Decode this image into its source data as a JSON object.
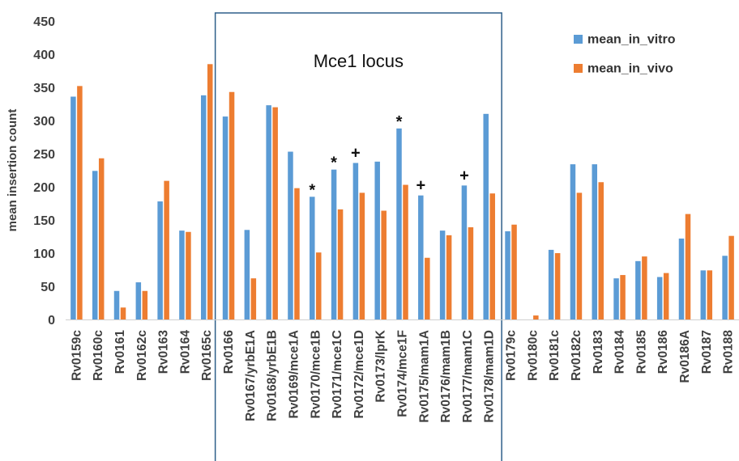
{
  "chart_data": {
    "type": "bar",
    "title": "",
    "xlabel": "",
    "ylabel": "mean insertion count",
    "ylim": [
      0,
      450
    ],
    "yticks": [
      0,
      50,
      100,
      150,
      200,
      250,
      300,
      350,
      400,
      450
    ],
    "grid": false,
    "legend_position": "top-right",
    "categories": [
      "Rv0159c",
      "Rv0160c",
      "Rv0161",
      "Rv0162c",
      "Rv0163",
      "Rv0164",
      "Rv0165c",
      "Rv0166",
      "Rv0167/yrbE1A",
      "Rv0168/yrbE1B",
      "Rv0169/mce1A",
      "Rv0170/mce1B",
      "Rv0171/mce1C",
      "Rv0172/mce1D",
      "Rv0173/lprK",
      "Rv0174/mce1F",
      "Rv0175/mam1A",
      "Rv0176/mam1B",
      "Rv0177/mam1C",
      "Rv0178/mam1D",
      "Rv0179c",
      "Rv0180c",
      "Rv0181c",
      "Rv0182c",
      "Rv0183",
      "Rv0184",
      "Rv0185",
      "Rv0186",
      "Rv0186A",
      "Rv0187",
      "Rv0188"
    ],
    "series": [
      {
        "name": "mean_in_vitro",
        "color": "#5B9BD5",
        "values": [
          336,
          224,
          43,
          56,
          178,
          134,
          338,
          306,
          135,
          323,
          253,
          185,
          226,
          236,
          238,
          288,
          187,
          134,
          202,
          310,
          133,
          0,
          105,
          234,
          234,
          62,
          88,
          64,
          122,
          74,
          96
        ]
      },
      {
        "name": "mean_in_vivo",
        "color": "#ED7D31",
        "values": [
          352,
          243,
          18,
          43,
          209,
          132,
          385,
          343,
          62,
          320,
          198,
          101,
          166,
          191,
          164,
          203,
          93,
          127,
          139,
          190,
          143,
          6,
          100,
          191,
          207,
          67,
          95,
          70,
          159,
          74,
          126
        ]
      }
    ],
    "annotations": [
      {
        "text": "Mce1 locus",
        "span": [
          "Rv0166",
          "Rv0178/mam1D"
        ]
      },
      {
        "text": "*",
        "category": "Rv0170/mce1B"
      },
      {
        "text": "*",
        "category": "Rv0171/mce1C"
      },
      {
        "text": "+",
        "category": "Rv0172/mce1D"
      },
      {
        "text": "*",
        "category": "Rv0174/mce1F"
      },
      {
        "text": "+",
        "category": "Rv0175/mam1A"
      },
      {
        "text": "+",
        "category": "Rv0177/mam1C"
      }
    ]
  }
}
